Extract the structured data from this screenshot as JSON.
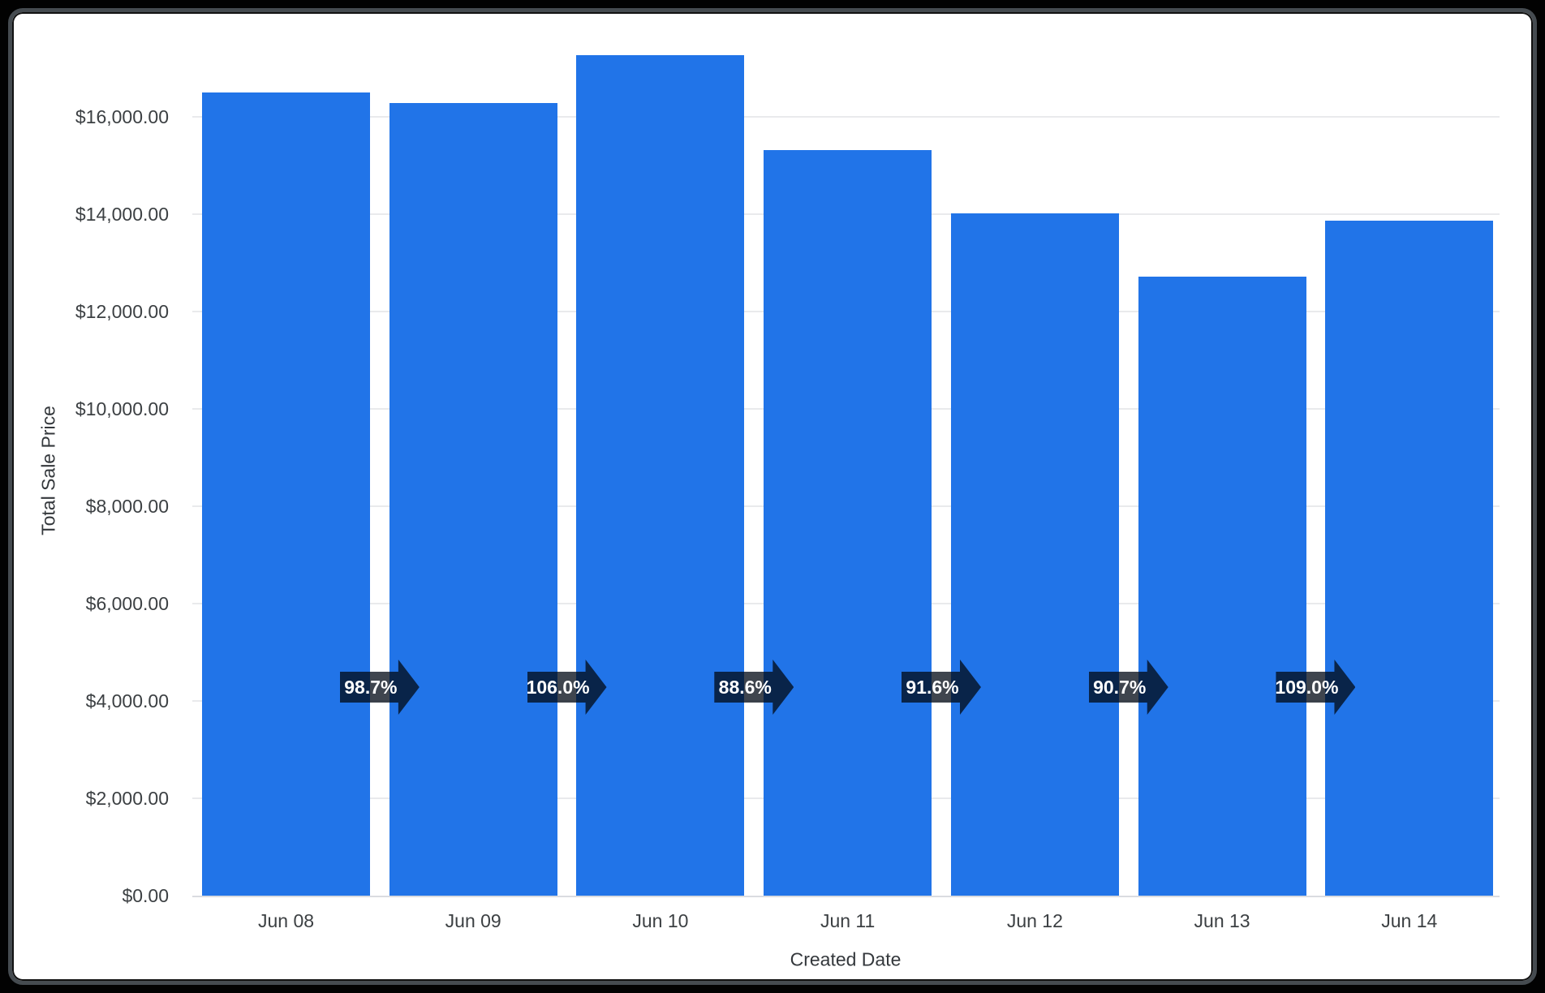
{
  "chart_data": {
    "type": "bar",
    "title": "",
    "xlabel": "Created Date",
    "ylabel": "Total Sale Price",
    "categories": [
      "Jun 08",
      "Jun 09",
      "Jun 10",
      "Jun 11",
      "Jun 12",
      "Jun 13",
      "Jun 14"
    ],
    "series": [
      {
        "name": "Total Sale Price",
        "values": [
          16500,
          16290,
          17270,
          15310,
          14020,
          12715,
          13860
        ]
      }
    ],
    "percent_change_badges": [
      "98.7%",
      "106.0%",
      "88.6%",
      "91.6%",
      "90.7%",
      "109.0%"
    ],
    "y_axis": {
      "tick_labels": [
        "$0.00",
        "$2,000.00",
        "$4,000.00",
        "$6,000.00",
        "$8,000.00",
        "$10,000.00",
        "$12,000.00",
        "$14,000.00",
        "$16,000.00"
      ],
      "tick_values": [
        0,
        2000,
        4000,
        6000,
        8000,
        10000,
        12000,
        14000,
        16000
      ],
      "range": [
        0,
        16000
      ]
    },
    "grid": "horizontal",
    "legend": "none",
    "colors": {
      "bar": "#2174e8",
      "badge": "rgba(3,10,22,0.76)",
      "gridline": "#e9eaec",
      "baseline": "#dadce0",
      "tick_text": "#3c4043",
      "axis_title_text": "#34383c",
      "badge_text": "#ffffff",
      "card_background": "#ffffff",
      "frame_background": "#020202",
      "card_border": "#454b50"
    }
  }
}
